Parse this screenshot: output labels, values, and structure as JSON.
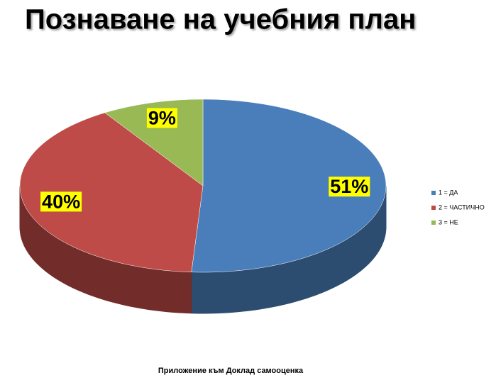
{
  "chart_data": {
    "type": "pie",
    "title": "Познаване на учебния план",
    "categories": [
      "1 = ДА",
      "2 = ЧАСТИЧНО",
      "3 = НЕ"
    ],
    "values": [
      51,
      40,
      9
    ],
    "value_labels": [
      "51%",
      "40%",
      "9%"
    ],
    "colors": [
      "#4a7ebb",
      "#be4b48",
      "#98b954"
    ],
    "legend": "right",
    "footnote": "Приложение към Доклад самооценка"
  }
}
